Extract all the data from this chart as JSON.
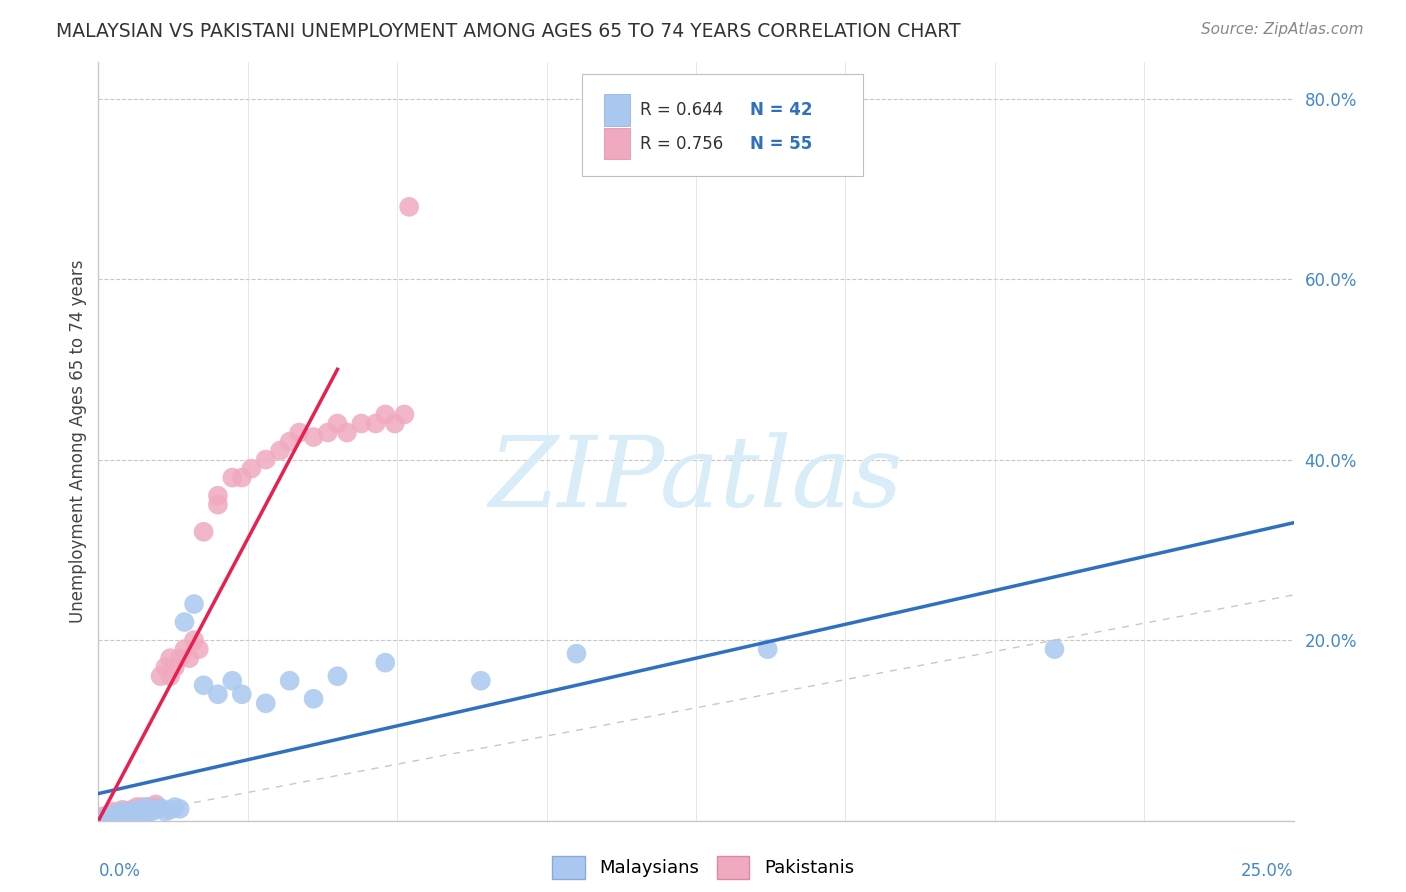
{
  "title": "MALAYSIAN VS PAKISTANI UNEMPLOYMENT AMONG AGES 65 TO 74 YEARS CORRELATION CHART",
  "source": "Source: ZipAtlas.com",
  "ylabel": "Unemployment Among Ages 65 to 74 years",
  "xlim": [
    0.0,
    0.25
  ],
  "ylim": [
    0.0,
    0.84
  ],
  "ytick_positions": [
    0.0,
    0.2,
    0.4,
    0.6,
    0.8
  ],
  "ytick_labels": [
    "",
    "20.0%",
    "40.0%",
    "60.0%",
    "80.0%"
  ],
  "legend_r_malaysian": "R = 0.644",
  "legend_n_malaysian": "N = 42",
  "legend_r_pakistani": "R = 0.756",
  "legend_n_pakistani": "N = 55",
  "malaysian_color": "#aac8f0",
  "pakistani_color": "#f0aac0",
  "malaysian_line_color": "#3070c0",
  "pakistani_line_color": "#e82050",
  "diagonal_color": "#c8c8c8",
  "watermark_text": "ZIPatlas",
  "watermark_color": "#d8edf8",
  "malaysian_label": "Malaysians",
  "pakistani_label": "Pakistanis",
  "malaysian_x": [
    0.001,
    0.002,
    0.002,
    0.003,
    0.003,
    0.004,
    0.004,
    0.005,
    0.005,
    0.005,
    0.006,
    0.006,
    0.007,
    0.007,
    0.008,
    0.008,
    0.009,
    0.009,
    0.01,
    0.01,
    0.011,
    0.012,
    0.013,
    0.014,
    0.015,
    0.016,
    0.017,
    0.018,
    0.02,
    0.022,
    0.025,
    0.028,
    0.03,
    0.035,
    0.04,
    0.045,
    0.05,
    0.06,
    0.08,
    0.1,
    0.14,
    0.2
  ],
  "malaysian_y": [
    0.002,
    0.003,
    0.005,
    0.004,
    0.006,
    0.003,
    0.007,
    0.005,
    0.008,
    0.01,
    0.004,
    0.008,
    0.006,
    0.01,
    0.005,
    0.012,
    0.007,
    0.01,
    0.008,
    0.015,
    0.01,
    0.012,
    0.014,
    0.01,
    0.012,
    0.015,
    0.013,
    0.22,
    0.24,
    0.15,
    0.14,
    0.155,
    0.14,
    0.13,
    0.155,
    0.135,
    0.16,
    0.175,
    0.155,
    0.185,
    0.19,
    0.19
  ],
  "pakistani_x": [
    0.001,
    0.001,
    0.002,
    0.002,
    0.003,
    0.003,
    0.003,
    0.004,
    0.004,
    0.005,
    0.005,
    0.005,
    0.006,
    0.006,
    0.007,
    0.007,
    0.008,
    0.008,
    0.009,
    0.009,
    0.01,
    0.01,
    0.011,
    0.012,
    0.012,
    0.013,
    0.014,
    0.015,
    0.015,
    0.016,
    0.017,
    0.018,
    0.019,
    0.02,
    0.021,
    0.022,
    0.025,
    0.025,
    0.028,
    0.03,
    0.032,
    0.035,
    0.038,
    0.04,
    0.042,
    0.045,
    0.048,
    0.05,
    0.052,
    0.055,
    0.058,
    0.06,
    0.062,
    0.064,
    0.065
  ],
  "pakistani_y": [
    0.003,
    0.005,
    0.004,
    0.006,
    0.005,
    0.007,
    0.01,
    0.006,
    0.008,
    0.005,
    0.008,
    0.012,
    0.007,
    0.01,
    0.008,
    0.012,
    0.01,
    0.015,
    0.012,
    0.015,
    0.01,
    0.015,
    0.015,
    0.015,
    0.018,
    0.16,
    0.17,
    0.16,
    0.18,
    0.17,
    0.18,
    0.19,
    0.18,
    0.2,
    0.19,
    0.32,
    0.35,
    0.36,
    0.38,
    0.38,
    0.39,
    0.4,
    0.41,
    0.42,
    0.43,
    0.425,
    0.43,
    0.44,
    0.43,
    0.44,
    0.44,
    0.45,
    0.44,
    0.45,
    0.68
  ],
  "mal_line_x": [
    0.0,
    0.25
  ],
  "mal_line_y": [
    0.03,
    0.33
  ],
  "pak_line_x": [
    0.0,
    0.05
  ],
  "pak_line_y": [
    0.0,
    0.5
  ]
}
